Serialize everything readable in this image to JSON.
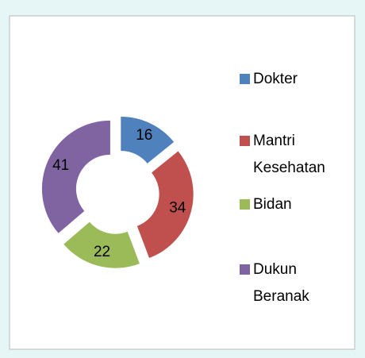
{
  "chart_data": {
    "type": "donut",
    "categories": [
      "Dokter",
      "Mantri Kesehatan",
      "Bidan",
      "Dukun Beranak"
    ],
    "values": [
      16,
      34,
      22,
      41
    ],
    "colors": [
      "#4f81bd",
      "#c0504d",
      "#9bbb59",
      "#8064a2"
    ],
    "exploded": true,
    "legend": "right"
  }
}
